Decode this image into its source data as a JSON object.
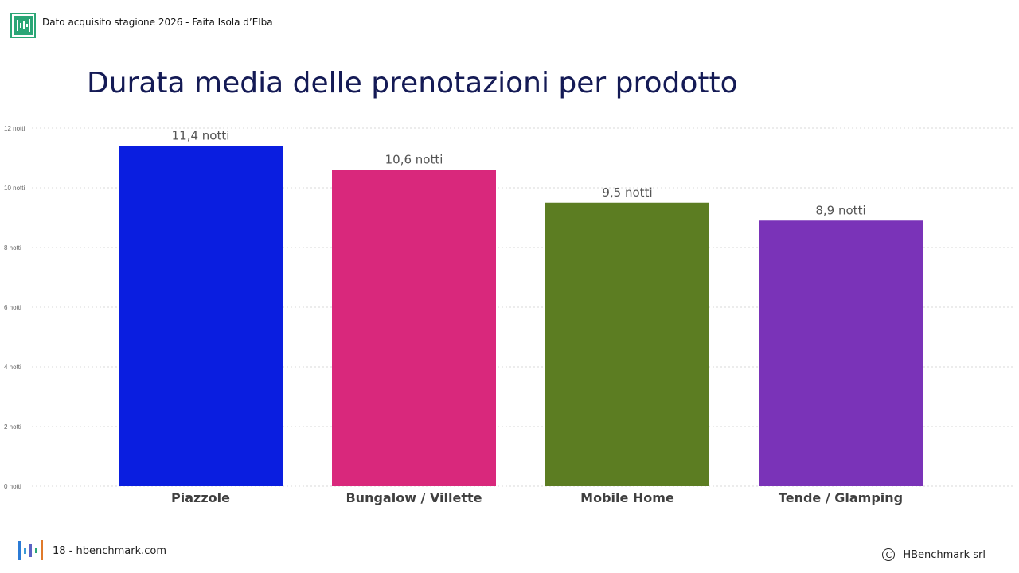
{
  "header": {
    "text": "Dato acquisito stagione 2026 - Faita Isola d’Elba",
    "logo_icon": "hbenchmark-logo-icon"
  },
  "title": "Durata media delle prenotazioni per prodotto",
  "footer": {
    "page": "18 - hbenchmark.com",
    "copyright_symbol": "C",
    "company": "HBenchmark srl",
    "logo_icon": "hbenchmark-logo-icon"
  },
  "colors": {
    "title": "#141a55",
    "header_logo": "#2aa676",
    "grid": "#d9d9d9",
    "tick": "#666666",
    "category_label": "#404040",
    "data_label": "#555555"
  },
  "chart_data": {
    "type": "bar",
    "categories": [
      "Piazzole",
      "Bungalow / Villette",
      "Mobile Home",
      "Tende / Glamping"
    ],
    "values": [
      11.4,
      10.6,
      9.5,
      8.9
    ],
    "data_labels": [
      "11,4 notti",
      "10,6 notti",
      "9,5 notti",
      "8,9 notti"
    ],
    "bar_colors": [
      "#0a1ee0",
      "#d9287c",
      "#5c7d22",
      "#7a33b8"
    ],
    "ylim": [
      0,
      12
    ],
    "yticks": [
      0,
      2,
      4,
      6,
      8,
      10,
      12
    ],
    "ytick_labels": [
      "0 notti",
      "2 notti",
      "4 notti",
      "6 notti",
      "8 notti",
      "10 notti",
      "12 notti"
    ],
    "grid": true,
    "legend": "none"
  }
}
